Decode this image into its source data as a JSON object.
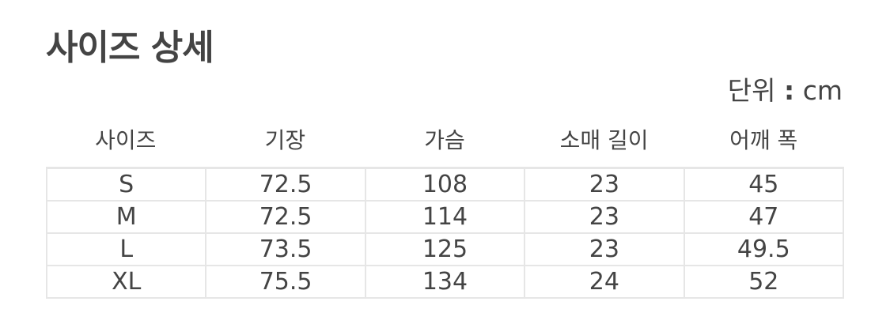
{
  "title": "사이즈 상세",
  "unit": {
    "label": "단위",
    "sep": ":",
    "value": "cm"
  },
  "table": {
    "headers": [
      "사이즈",
      "기장",
      "가슴",
      "소매 길이",
      "어깨 폭"
    ],
    "rows": [
      [
        "S",
        "72.5",
        "108",
        "23",
        "45"
      ],
      [
        "M",
        "72.5",
        "114",
        "23",
        "47"
      ],
      [
        "L",
        "73.5",
        "125",
        "23",
        "49.5"
      ],
      [
        "XL",
        "75.5",
        "134",
        "24",
        "52"
      ]
    ]
  }
}
